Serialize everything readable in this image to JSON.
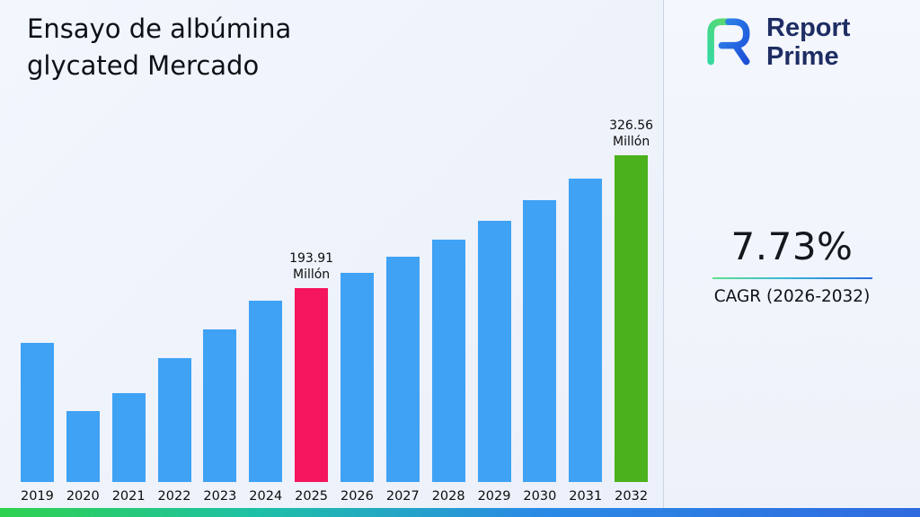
{
  "page": {
    "title_line1": "Ensayo de albúmina",
    "title_line2": "glycated Mercado"
  },
  "logo": {
    "line1": "Report",
    "line2": "Prime"
  },
  "stats": {
    "cagr_value": "7.73%",
    "cagr_label": "CAGR (2026-2032)"
  },
  "colors": {
    "bar_blue": "#3fa2f5",
    "bar_pink": "#f5145e",
    "bar_green": "#4bb11d",
    "logo_navy": "#1e2d63",
    "background": "#eef2fa",
    "bottom_gradient": [
      "#2fd24f",
      "#1ec0a6",
      "#2a8be5",
      "#2f6ae0"
    ]
  },
  "chart_data": {
    "type": "bar",
    "title": "Ensayo de albúmina glycated Mercado",
    "categories": [
      "2019",
      "2020",
      "2021",
      "2022",
      "2023",
      "2024",
      "2025",
      "2026",
      "2027",
      "2028",
      "2029",
      "2030",
      "2031",
      "2032"
    ],
    "values": [
      139,
      71,
      89,
      124,
      152,
      181,
      193.91,
      208.9,
      225.05,
      242.44,
      261.18,
      281.37,
      303.12,
      326.56
    ],
    "unit": "Millón",
    "xlabel": "",
    "ylabel": "",
    "ylim": [
      0,
      330
    ],
    "grid": false,
    "legend": false,
    "bar_default_color": "#3fa2f5",
    "highlights": [
      {
        "category": "2025",
        "color": "#f5145e",
        "label_lines": [
          "193.91",
          "Millón"
        ]
      },
      {
        "category": "2032",
        "color": "#4bb11d",
        "label_lines": [
          "326.56",
          "Millón"
        ]
      }
    ]
  }
}
